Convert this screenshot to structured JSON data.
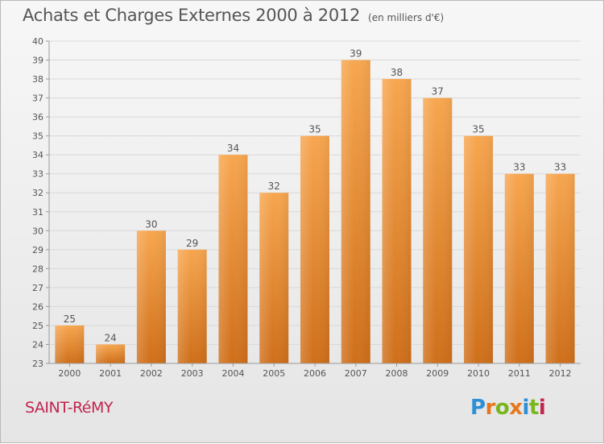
{
  "page": {
    "title": "Achats et Charges Externes 2000 à 2012",
    "subtitle": "(en milliers d'€)",
    "commune": "SAINT-RéMY",
    "logo": {
      "text": "Proxiti",
      "letter_colors": [
        "#2f8fd6",
        "#e8771c",
        "#79b51c",
        "#e8771c",
        "#2f8fd6",
        "#79b51c",
        "#c0264f"
      ]
    },
    "colors": {
      "bar_top": "#f7a64f",
      "bar_bottom": "#cf6f1a",
      "commune": "#c0264f",
      "axis": "#9a9a9a",
      "grid": "#d9d9d9",
      "text": "#555555"
    }
  },
  "chart_data": {
    "type": "bar",
    "title": "Achats et Charges Externes 2000 à 2012",
    "subtitle": "(en milliers d'€)",
    "xlabel": "",
    "ylabel": "",
    "ylim": [
      23,
      40
    ],
    "yticks": [
      "23",
      "24",
      "25",
      "26",
      "27",
      "28",
      "29",
      "30",
      "31",
      "32",
      "33",
      "34",
      "35",
      "36",
      "37",
      "38",
      "39",
      "40"
    ],
    "grid": true,
    "categories": [
      "2000",
      "2001",
      "2002",
      "2003",
      "2004",
      "2005",
      "2006",
      "2007",
      "2008",
      "2009",
      "2010",
      "2011",
      "2012"
    ],
    "values": [
      25,
      24,
      30,
      29,
      34,
      32,
      35,
      39,
      38,
      37,
      35,
      33,
      33
    ],
    "value_labels": [
      "25",
      "24",
      "30",
      "29",
      "34",
      "32",
      "35",
      "39",
      "38",
      "37",
      "35",
      "33",
      "33"
    ]
  }
}
